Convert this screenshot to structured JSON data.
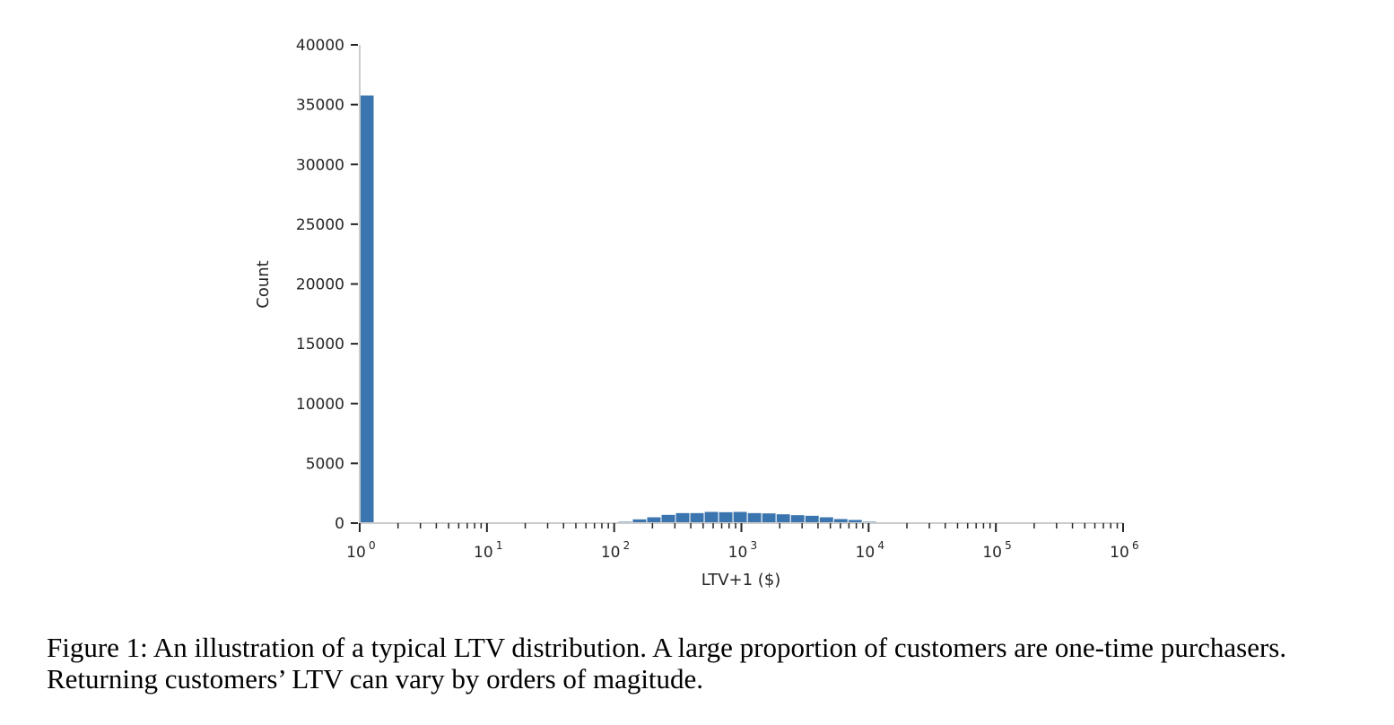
{
  "chart_data": {
    "type": "bar",
    "title": "",
    "xlabel": "LTV+1 ($)",
    "ylabel": "Count",
    "xscale": "log",
    "xlim": [
      1,
      1000000
    ],
    "ylim": [
      0,
      40000
    ],
    "ytick_labels": [
      "0",
      "5000",
      "10000",
      "15000",
      "20000",
      "25000",
      "30000",
      "35000",
      "40000"
    ],
    "yticks": [
      0,
      5000,
      10000,
      15000,
      20000,
      25000,
      30000,
      35000,
      40000
    ],
    "xtick_base": "10",
    "xtick_exponents": [
      "0",
      "1",
      "2",
      "3",
      "4",
      "5",
      "6"
    ],
    "bar_color": "#3b75af",
    "bin_width_log10": 0.1128,
    "bins": [
      {
        "log10_start": 0.0,
        "count": 35800
      },
      {
        "log10_start": 2.03,
        "count": 150
      },
      {
        "log10_start": 2.143,
        "count": 350
      },
      {
        "log10_start": 2.256,
        "count": 525
      },
      {
        "log10_start": 2.369,
        "count": 725
      },
      {
        "log10_start": 2.482,
        "count": 875
      },
      {
        "log10_start": 2.595,
        "count": 875
      },
      {
        "log10_start": 2.708,
        "count": 975
      },
      {
        "log10_start": 2.821,
        "count": 950
      },
      {
        "log10_start": 2.934,
        "count": 975
      },
      {
        "log10_start": 3.047,
        "count": 875
      },
      {
        "log10_start": 3.16,
        "count": 850
      },
      {
        "log10_start": 3.273,
        "count": 775
      },
      {
        "log10_start": 3.386,
        "count": 700
      },
      {
        "log10_start": 3.499,
        "count": 650
      },
      {
        "log10_start": 3.612,
        "count": 525
      },
      {
        "log10_start": 3.725,
        "count": 375
      },
      {
        "log10_start": 3.838,
        "count": 300
      },
      {
        "log10_start": 3.951,
        "count": 150
      },
      {
        "log10_start": 4.064,
        "count": 100
      },
      {
        "log10_start": 4.177,
        "count": 50
      }
    ]
  },
  "caption": "Figure 1: An illustration of a typical LTV distribution. A large proportion of customers are one-time purchasers. Returning customers’ LTV can vary by orders of magitude."
}
